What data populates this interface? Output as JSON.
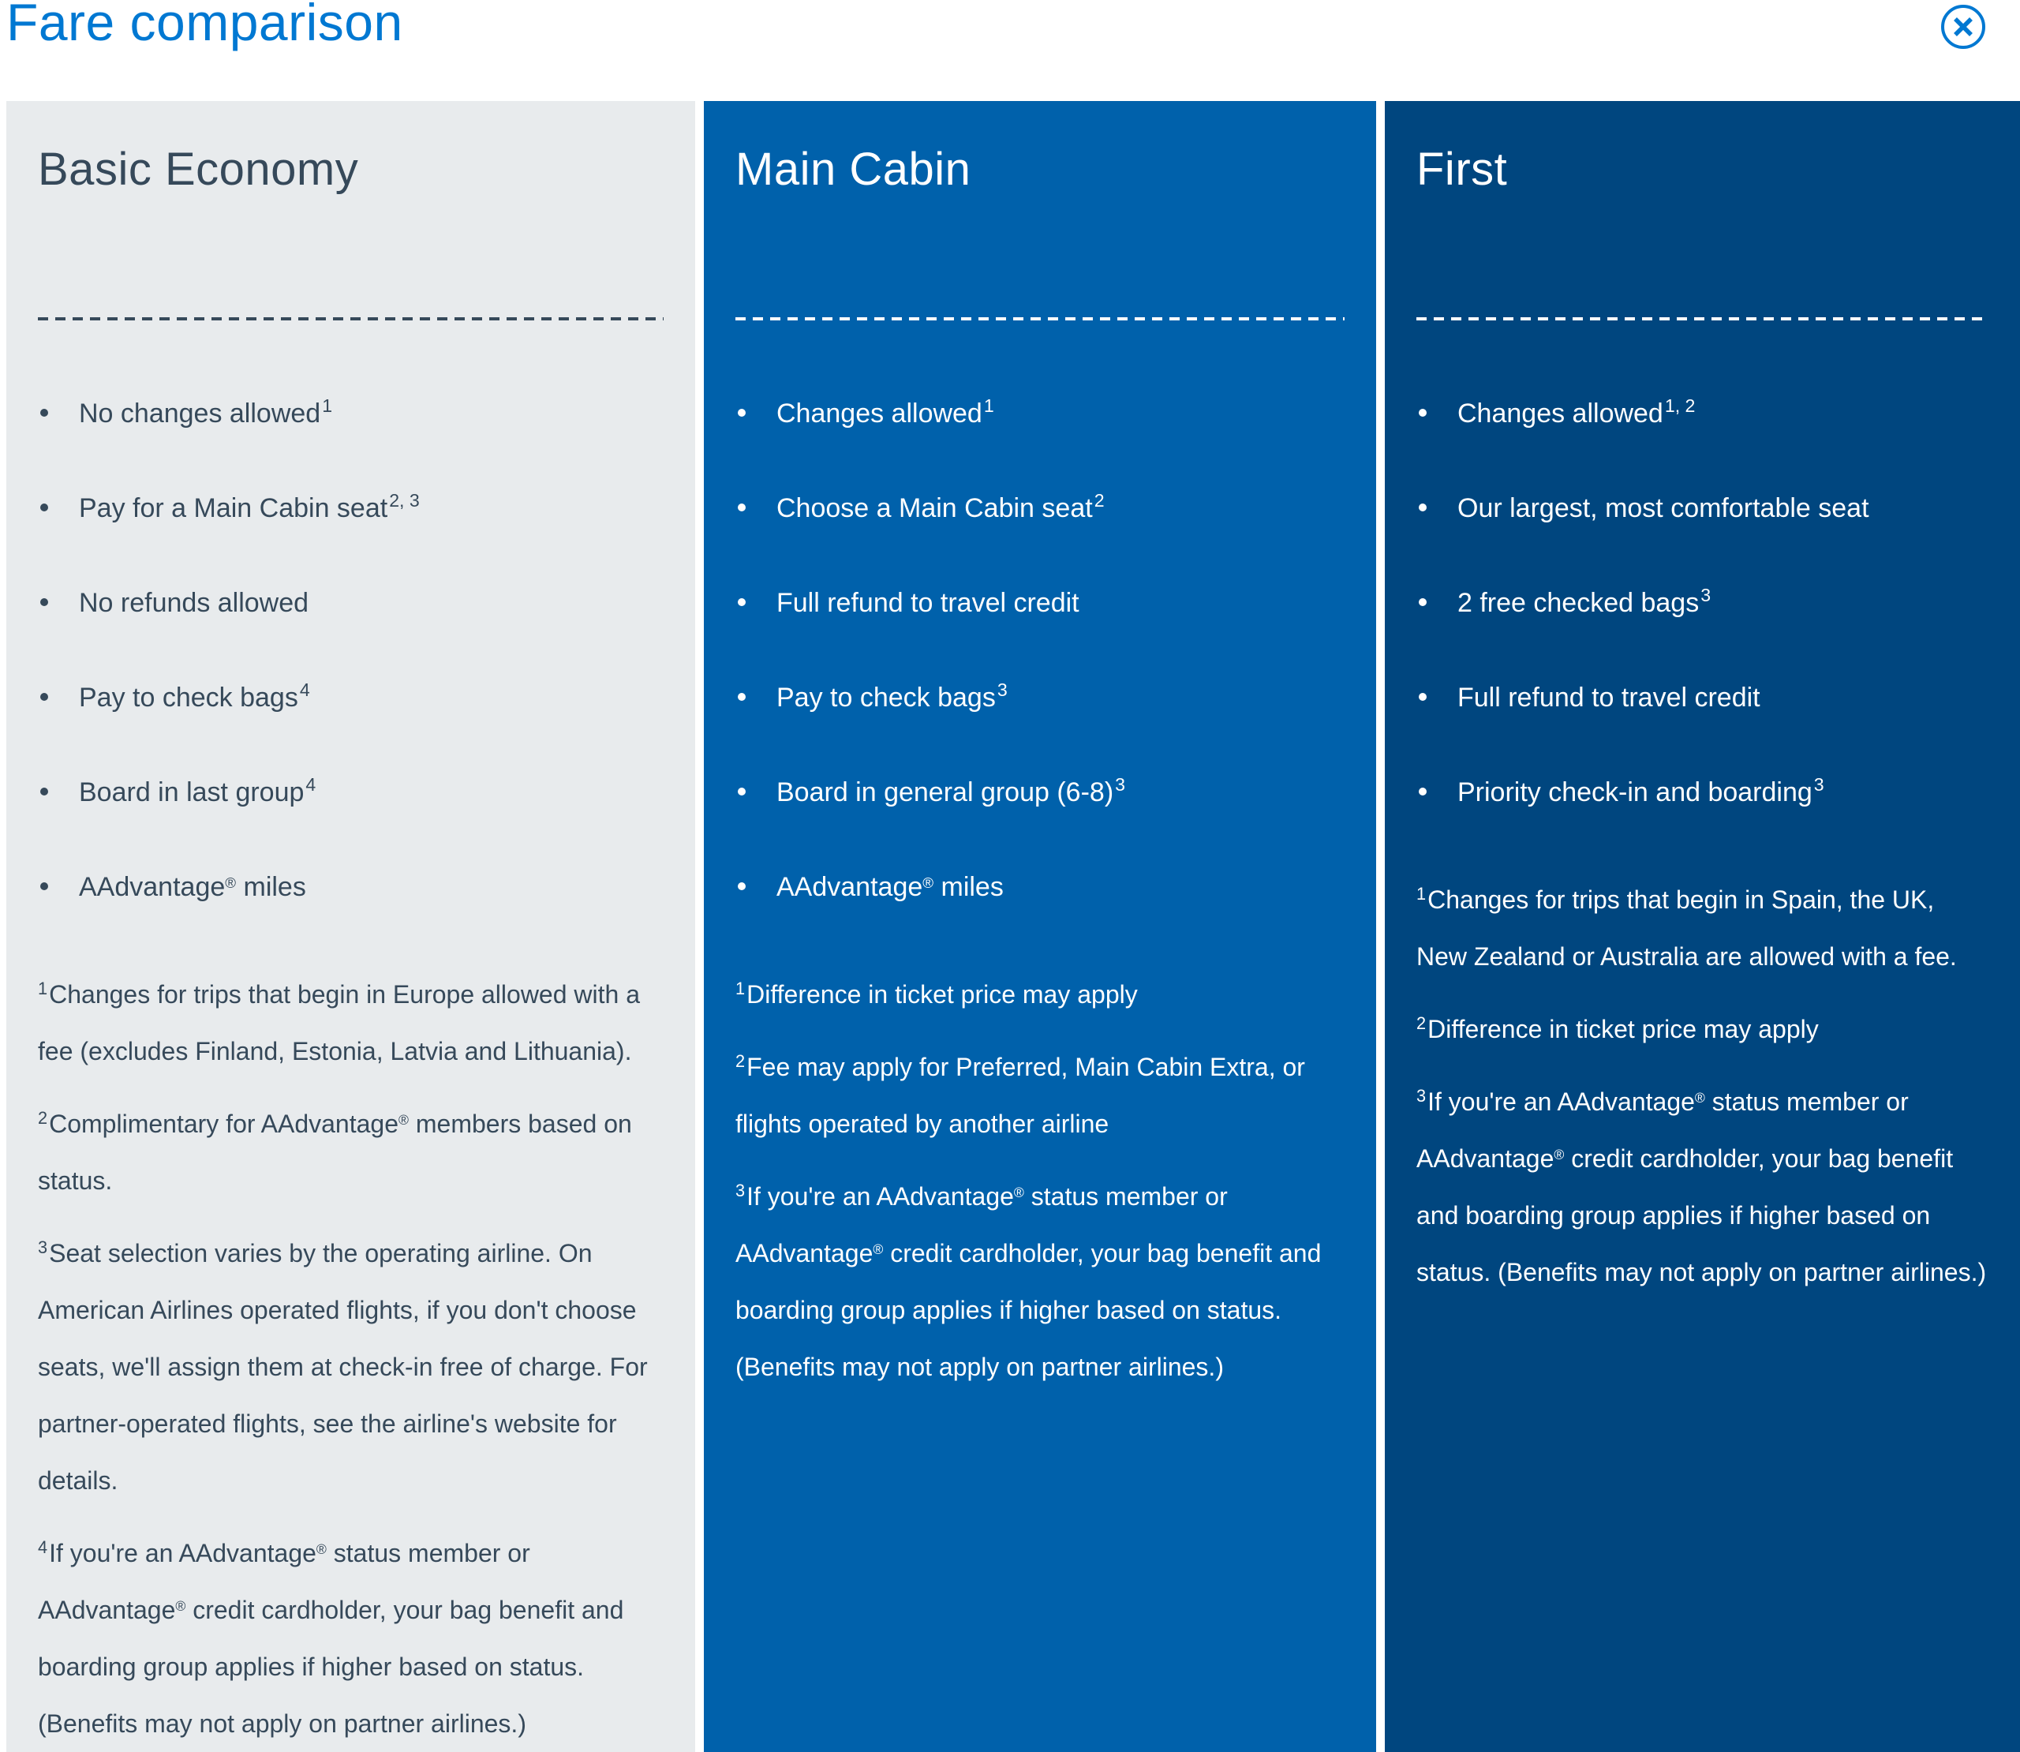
{
  "title": "Fare comparison",
  "close": {
    "label": "Close",
    "icon": "circle-x-icon"
  },
  "colors": {
    "title_text": "#0078D2",
    "close_accent": "#0078D2",
    "basic_economy_bg": "#E8EBED",
    "basic_economy_text": "#36495A",
    "main_cabin_bg": "#0061AB",
    "first_bg": "#00467F",
    "light_text": "#FFFFFF"
  },
  "columns": [
    {
      "id": "basic-economy",
      "title": "Basic Economy",
      "bg": "#E8EBED",
      "fg": "#36495A",
      "bullets": [
        {
          "text": "No changes allowed",
          "sup": "1"
        },
        {
          "text": "Pay for a Main Cabin seat",
          "sup": "2, 3"
        },
        {
          "text": "No refunds allowed",
          "sup": ""
        },
        {
          "text": "Pay to check bags",
          "sup": "4"
        },
        {
          "text": "Board in last group",
          "sup": "4"
        },
        {
          "text": "AAdvantage® miles",
          "sup": ""
        }
      ],
      "footnotes": [
        {
          "sup": "1",
          "text": "Changes for trips that begin in Europe allowed with a fee (excludes Finland, Estonia, Latvia and Lithuania)."
        },
        {
          "sup": "2",
          "text": "Complimentary for AAdvantage® members based on status."
        },
        {
          "sup": "3",
          "text": "Seat selection varies by the operating airline. On American Airlines operated flights, if you don't choose seats, we'll assign them at check-in free of charge. For partner-operated flights, see the airline's website for details."
        },
        {
          "sup": "4",
          "text": "If you're an AAdvantage® status member or AAdvantage® credit cardholder, your bag benefit and boarding group applies if higher based on status. (Benefits may not apply on partner airlines.)"
        }
      ]
    },
    {
      "id": "main-cabin",
      "title": "Main Cabin",
      "bg": "#0061AB",
      "fg": "#FFFFFF",
      "bullets": [
        {
          "text": "Changes allowed",
          "sup": "1"
        },
        {
          "text": "Choose a Main Cabin seat",
          "sup": "2"
        },
        {
          "text": "Full refund to travel credit",
          "sup": ""
        },
        {
          "text": "Pay to check bags",
          "sup": "3"
        },
        {
          "text": "Board in general group (6-8)",
          "sup": "3"
        },
        {
          "text": "AAdvantage® miles",
          "sup": ""
        }
      ],
      "footnotes": [
        {
          "sup": "1",
          "text": "Difference in ticket price may apply"
        },
        {
          "sup": "2",
          "text": "Fee may apply for Preferred, Main Cabin Extra, or flights operated by another airline"
        },
        {
          "sup": "3",
          "text": "If you're an AAdvantage® status member or AAdvantage® credit cardholder, your bag benefit and boarding group applies if higher based on status. (Benefits may not apply on partner airlines.)"
        }
      ]
    },
    {
      "id": "first",
      "title": "First",
      "bg": "#00467F",
      "fg": "#FFFFFF",
      "bullets": [
        {
          "text": "Changes allowed",
          "sup": "1, 2"
        },
        {
          "text": "Our largest, most comfortable seat",
          "sup": ""
        },
        {
          "text": "2 free checked bags",
          "sup": "3"
        },
        {
          "text": "Full refund to travel credit",
          "sup": ""
        },
        {
          "text": "Priority check-in and boarding",
          "sup": "3"
        }
      ],
      "footnotes": [
        {
          "sup": "1",
          "text": "Changes for trips that begin in Spain, the UK, New Zealand or Australia are allowed with a fee."
        },
        {
          "sup": "2",
          "text": "Difference in ticket price may apply"
        },
        {
          "sup": "3",
          "text": "If you're an AAdvantage® status member or AAdvantage® credit cardholder, your bag benefit and boarding group applies if higher based on status. (Benefits may not apply on partner airlines.)"
        }
      ]
    }
  ]
}
